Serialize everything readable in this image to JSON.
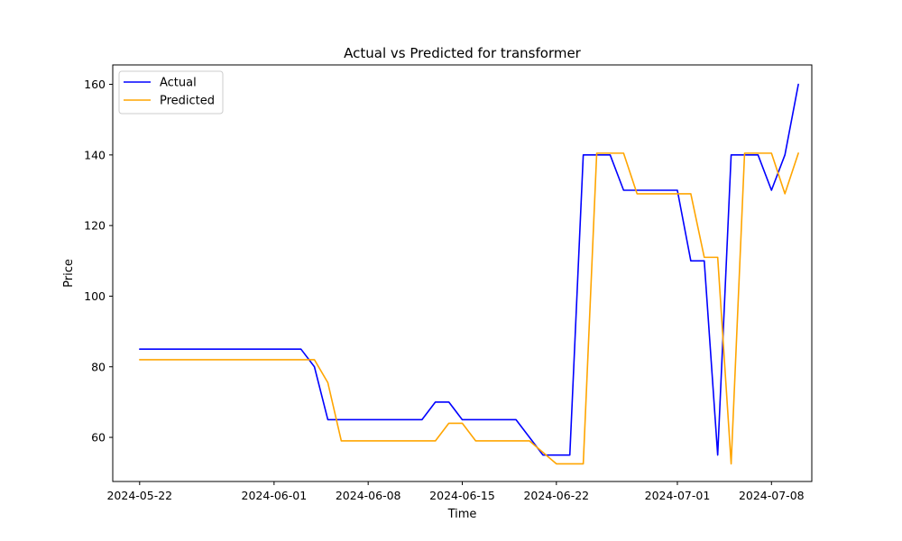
{
  "chart_data": {
    "type": "line",
    "title": "Actual vs Predicted for transformer",
    "xlabel": "Time",
    "ylabel": "Price",
    "x_type": "date",
    "xlim": [
      "2024-05-20",
      "2024-07-11"
    ],
    "ylim": [
      47.5,
      165.5
    ],
    "grid": false,
    "legend_position": "top-left",
    "x_ticks": [
      "2024-05-22",
      "2024-06-01",
      "2024-06-08",
      "2024-06-15",
      "2024-06-22",
      "2024-07-01",
      "2024-07-08"
    ],
    "y_ticks": [
      60,
      80,
      100,
      120,
      140,
      160
    ],
    "series": [
      {
        "name": "Actual",
        "color": "#0000ff",
        "points": [
          [
            "2024-05-22",
            85
          ],
          [
            "2024-06-03",
            85
          ],
          [
            "2024-06-04",
            80
          ],
          [
            "2024-06-05",
            65
          ],
          [
            "2024-06-12",
            65
          ],
          [
            "2024-06-13",
            70
          ],
          [
            "2024-06-14",
            70
          ],
          [
            "2024-06-15",
            65
          ],
          [
            "2024-06-19",
            65
          ],
          [
            "2024-06-21",
            55
          ],
          [
            "2024-06-23",
            55
          ],
          [
            "2024-06-24",
            140
          ],
          [
            "2024-06-26",
            140
          ],
          [
            "2024-06-27",
            130
          ],
          [
            "2024-07-01",
            130
          ],
          [
            "2024-07-02",
            110
          ],
          [
            "2024-07-03",
            110
          ],
          [
            "2024-07-04",
            55
          ],
          [
            "2024-07-05",
            140
          ],
          [
            "2024-07-07",
            140
          ],
          [
            "2024-07-08",
            130
          ],
          [
            "2024-07-09",
            140
          ],
          [
            "2024-07-10",
            160
          ]
        ]
      },
      {
        "name": "Predicted",
        "color": "#ffa500",
        "points": [
          [
            "2024-05-22",
            82
          ],
          [
            "2024-06-04",
            82
          ],
          [
            "2024-06-05",
            75.5
          ],
          [
            "2024-06-06",
            59
          ],
          [
            "2024-06-13",
            59
          ],
          [
            "2024-06-14",
            64
          ],
          [
            "2024-06-15",
            64
          ],
          [
            "2024-06-16",
            59
          ],
          [
            "2024-06-20",
            59
          ],
          [
            "2024-06-22",
            52.5
          ],
          [
            "2024-06-24",
            52.5
          ],
          [
            "2024-06-25",
            140.5
          ],
          [
            "2024-06-27",
            140.5
          ],
          [
            "2024-06-28",
            129
          ],
          [
            "2024-07-02",
            129
          ],
          [
            "2024-07-03",
            111
          ],
          [
            "2024-07-04",
            111
          ],
          [
            "2024-07-05",
            52.5
          ],
          [
            "2024-07-06",
            140.5
          ],
          [
            "2024-07-08",
            140.5
          ],
          [
            "2024-07-09",
            129
          ],
          [
            "2024-07-10",
            140.5
          ]
        ]
      }
    ]
  }
}
